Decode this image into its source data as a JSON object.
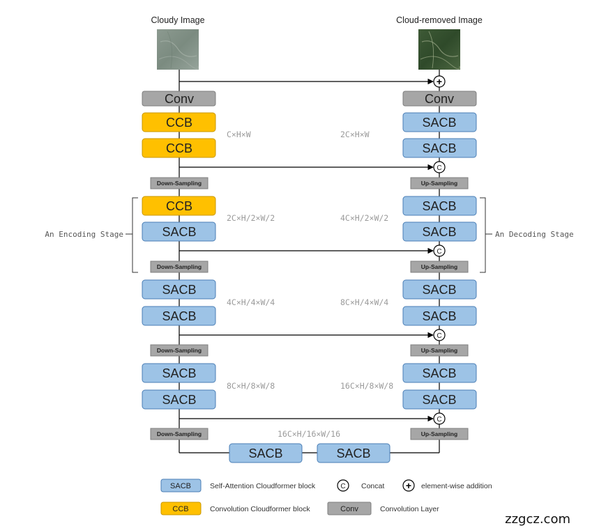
{
  "titles": {
    "input": "Cloudy Image",
    "output": "Cloud-removed Image"
  },
  "colors": {
    "sacb_fill": "#9dc3e6",
    "sacb_stroke": "#4a7eb5",
    "ccb_fill": "#ffc000",
    "ccb_stroke": "#c99700",
    "conv_fill": "#a6a6a6",
    "conv_stroke": "#7f7f7f",
    "line": "#000000"
  },
  "encoder": {
    "conv": "Conv",
    "blocks": [
      [
        "CCB",
        "CCB"
      ],
      [
        "CCB",
        "SACB"
      ],
      [
        "SACB",
        "SACB"
      ],
      [
        "SACB",
        "SACB"
      ]
    ],
    "downsampling": "Down-Sampling"
  },
  "decoder": {
    "conv": "Conv",
    "blocks": [
      [
        "SACB",
        "SACB"
      ],
      [
        "SACB",
        "SACB"
      ],
      [
        "SACB",
        "SACB"
      ],
      [
        "SACB",
        "SACB"
      ]
    ],
    "upsampling": "Up-Sampling"
  },
  "bottleneck": {
    "blocks": [
      "SACB",
      "SACB"
    ],
    "dim": "16C×H/16×W/16"
  },
  "dims": {
    "encoder": [
      "C×H×W",
      "2C×H/2×W/2",
      "4C×H/4×W/4",
      "8C×H/8×W/8"
    ],
    "decoder": [
      "2C×H×W",
      "4C×H/2×W/2",
      "8C×H/4×W/4",
      "16C×H/8×W/8"
    ]
  },
  "stages": {
    "encoding": "An Encoding Stage",
    "decoding": "An Decoding Stage"
  },
  "symbols": {
    "concat": "C",
    "add": "+"
  },
  "legend": {
    "sacb": {
      "block": "SACB",
      "label": "Self-Attention Cloudformer block"
    },
    "ccb": {
      "block": "CCB",
      "label": "Convolution Cloudformer block"
    },
    "concat": {
      "symbol": "C",
      "label": "Concat"
    },
    "add": {
      "symbol": "+",
      "label": "element-wise addition"
    },
    "conv": {
      "block": "Conv",
      "label": "Convolution Layer"
    }
  },
  "watermark": "zzgcz.com"
}
